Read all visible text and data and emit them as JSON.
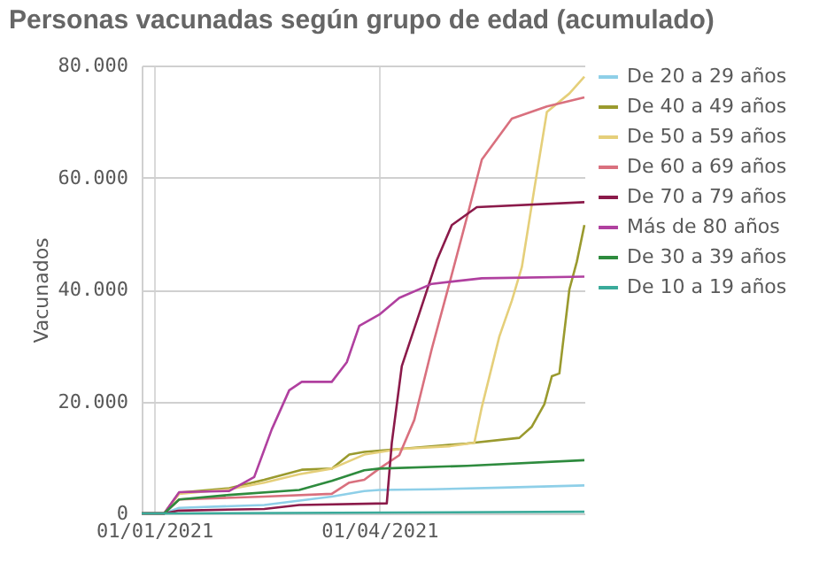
{
  "chart_data": {
    "type": "line",
    "title": "Personas vacunadas según grupo de edad (acumulado)",
    "ylabel": "Vacunados",
    "xlim": [
      "2020-12-27",
      "2021-06-22"
    ],
    "xticks": [
      {
        "value": "2021-01-01",
        "label": "01/01/2021"
      },
      {
        "value": "2021-04-01",
        "label": "01/04/2021"
      }
    ],
    "ylim": [
      0,
      80000
    ],
    "yticks": [
      {
        "value": 0,
        "label": "0"
      },
      {
        "value": 20000,
        "label": "20.000"
      },
      {
        "value": 40000,
        "label": "40.000"
      },
      {
        "value": 60000,
        "label": "60.000"
      },
      {
        "value": 80000,
        "label": "80.000"
      }
    ],
    "grid": true,
    "legend": "right",
    "series": [
      {
        "name": "De 20 a 29 años",
        "color": "#8ecfe8",
        "x": [
          "2020-12-27",
          "2021-01-05",
          "2021-01-11",
          "2021-02-14",
          "2021-03-13",
          "2021-03-26",
          "2021-04-01",
          "2021-04-22",
          "2021-05-20",
          "2021-06-22"
        ],
        "values": [
          0,
          0,
          1000,
          1500,
          3000,
          4000,
          4200,
          4300,
          4600,
          5000
        ]
      },
      {
        "name": "De 40 a 49 años",
        "color": "#9a9a2e",
        "x": [
          "2020-12-27",
          "2021-01-05",
          "2021-01-11",
          "2021-01-31",
          "2021-02-14",
          "2021-03-01",
          "2021-03-13",
          "2021-03-20",
          "2021-03-26",
          "2021-04-09",
          "2021-05-06",
          "2021-05-27",
          "2021-06-01",
          "2021-06-06",
          "2021-06-09",
          "2021-06-12",
          "2021-06-16",
          "2021-06-19",
          "2021-06-22"
        ],
        "values": [
          0,
          0,
          3700,
          4500,
          6000,
          7800,
          8000,
          10500,
          11000,
          11500,
          12500,
          13500,
          15500,
          19500,
          24500,
          25000,
          40000,
          45000,
          51500
        ]
      },
      {
        "name": "De 50 a 59 años",
        "color": "#e5cf7a",
        "x": [
          "2020-12-27",
          "2021-01-05",
          "2021-01-11",
          "2021-01-31",
          "2021-02-14",
          "2021-02-28",
          "2021-03-13",
          "2021-03-26",
          "2021-04-09",
          "2021-04-29",
          "2021-05-09",
          "2021-05-12",
          "2021-05-19",
          "2021-05-24",
          "2021-05-28",
          "2021-06-02",
          "2021-06-07",
          "2021-06-16",
          "2021-06-22"
        ],
        "values": [
          0,
          0,
          3500,
          4300,
          5500,
          7000,
          8000,
          10500,
          11500,
          12000,
          12600,
          19000,
          31600,
          38000,
          44000,
          58000,
          71700,
          75000,
          78000
        ]
      },
      {
        "name": "De 60 a 69 años",
        "color": "#d9707e",
        "x": [
          "2020-12-27",
          "2021-01-05",
          "2021-01-11",
          "2021-02-14",
          "2021-03-13",
          "2021-03-20",
          "2021-03-26",
          "2021-04-01",
          "2021-04-09",
          "2021-04-15",
          "2021-04-22",
          "2021-04-29",
          "2021-05-06",
          "2021-05-12",
          "2021-05-24",
          "2021-06-07",
          "2021-06-22"
        ],
        "values": [
          0,
          0,
          2500,
          3000,
          3500,
          5500,
          6000,
          8000,
          10400,
          16700,
          29400,
          41000,
          52800,
          63200,
          70500,
          72700,
          74300
        ]
      },
      {
        "name": "De 70 a 79 años",
        "color": "#8b1a4a",
        "x": [
          "2020-12-27",
          "2021-01-05",
          "2021-01-11",
          "2021-02-14",
          "2021-02-28",
          "2021-04-04",
          "2021-04-06",
          "2021-04-10",
          "2021-04-17",
          "2021-04-24",
          "2021-04-30",
          "2021-05-10",
          "2021-06-22"
        ],
        "values": [
          0,
          0,
          500,
          800,
          1500,
          1800,
          12600,
          26300,
          35700,
          45200,
          51500,
          54700,
          55600
        ]
      },
      {
        "name": "Más de 80 años",
        "color": "#b0409f",
        "x": [
          "2020-12-27",
          "2021-01-05",
          "2021-01-11",
          "2021-01-31",
          "2021-02-10",
          "2021-02-17",
          "2021-02-24",
          "2021-03-01",
          "2021-03-13",
          "2021-03-19",
          "2021-03-24",
          "2021-04-01",
          "2021-04-09",
          "2021-04-22",
          "2021-05-12",
          "2021-06-22"
        ],
        "values": [
          0,
          0,
          3800,
          4000,
          6500,
          15000,
          22000,
          23500,
          23500,
          27000,
          33500,
          35500,
          38500,
          41000,
          42000,
          42300
        ]
      },
      {
        "name": "De 30 a 39 años",
        "color": "#2e8b3e",
        "x": [
          "2020-12-27",
          "2021-01-05",
          "2021-01-11",
          "2021-01-31",
          "2021-02-28",
          "2021-03-13",
          "2021-03-26",
          "2021-04-01",
          "2021-05-06",
          "2021-06-22"
        ],
        "values": [
          0,
          0,
          2500,
          3300,
          4200,
          5800,
          7700,
          8000,
          8500,
          9500
        ]
      },
      {
        "name": "De 10 a 19 años",
        "color": "#3aaa9a",
        "x": [
          "2020-12-27",
          "2021-01-05",
          "2021-06-22"
        ],
        "values": [
          0,
          0,
          300
        ]
      }
    ]
  }
}
